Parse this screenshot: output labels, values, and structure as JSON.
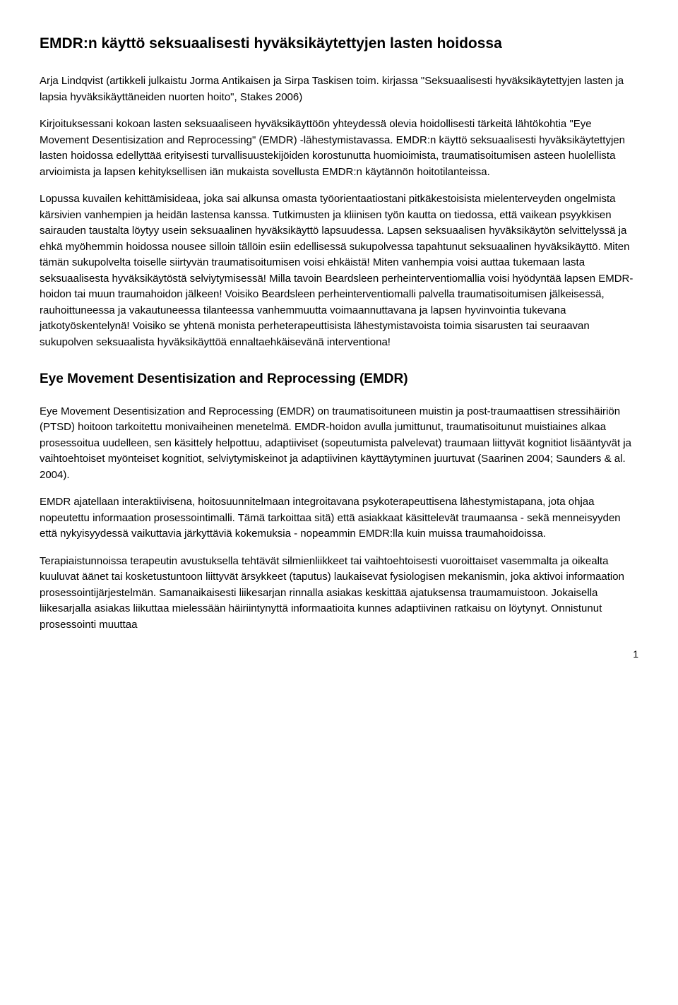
{
  "title": "EMDR:n käyttö seksuaalisesti hyväksikäytettyjen lasten hoidossa",
  "author_line": "Arja Lindqvist  (artikkeli julkaistu Jorma Antikaisen ja Sirpa Taskisen toim. kirjassa \"Seksuaalisesti hyväksikäytettyjen lasten ja lapsia hyväksikäyttäneiden nuorten hoito\", Stakes 2006)",
  "intro_p1": "Kirjoituksessani kokoan lasten seksuaaliseen hyväksikäyttöön yhteydessä olevia hoidollisesti tärkeitä lähtökohtia \"Eye Movement Desentisization and Reprocessing\" (EMDR) -lähestymistavassa. EMDR:n käyttö seksuaalisesti hyväksikäytettyjen lasten hoidossa edellyttää erityisesti turvallisuustekijöiden korostunutta huomioimista, traumatisoitumisen asteen huolellista arvioimista ja lapsen kehityksellisen iän mukaista sovellusta EMDR:n käytännön hoitotilanteissa.",
  "intro_p2": "Lopussa kuvailen kehittämisideaa, joka sai alkunsa omasta työorientaatiostani pitkäkestoisista mielenterveyden ongelmista kärsivien vanhempien ja heidän lastensa kanssa. Tutkimusten ja kliinisen työn kautta on tiedossa, että vaikean psyykkisen sairauden taustalta löytyy usein seksuaalinen hyväksikäyttö lapsuudessa. Lapsen seksuaalisen hyväksikäytön selvittelyssä ja ehkä myöhemmin hoidossa nousee silloin tällöin esiin edellisessä sukupolvessa tapahtunut seksuaalinen hyväksikäyttö. Miten tämän sukupolvelta toiselle siirtyvän traumatisoitumisen voisi ehkäistä! Miten vanhempia voisi auttaa tukemaan lasta seksuaalisesta hyväksikäytöstä selviytymisessä! Milla tavoin Beardsleen perheinterventiomallia voisi hyödyntää lapsen EMDR-hoidon tai muun traumahoidon jälkeen! Voisiko Beardsleen perheinterventiomalli palvella traumatisoitumisen jälkeisessä, rauhoittuneessa ja vakautuneessa tilanteessa vanhemmuutta voimaannuttavana ja lapsen hyvinvointia tukevana jatkotyöskentelynä! Voisiko se yhtenä monista perheterapeuttisista lähestymistavoista toimia sisarusten tai seuraavan sukupolven seksuaalista hyväksikäyttöä ennaltaehkäisevänä interventiona!",
  "section_heading": "Eye Movement Desentisization and Reprocessing (EMDR)",
  "sec_p1": "Eye Movement Desentisization and Reprocessing (EMDR) on traumatisoituneen muistin ja post-traumaattisen stressihäiriön (PTSD) hoitoon tarkoitettu monivaiheinen menetelmä. EMDR-hoidon avulla jumittunut, traumatisoitunut muistiaines alkaa prosessoitua uudelleen, sen käsittely helpottuu, adaptiiviset (sopeutumista palvelevat) traumaan liittyvät kognitiot lisääntyvät ja vaihtoehtoiset myönteiset kognitiot, selviytymiskeinot ja adaptiivinen käyttäytyminen juurtuvat (Saarinen 2004; Saunders & al. 2004).",
  "sec_p2": "EMDR ajatellaan interaktiivisena, hoitosuunnitelmaan integroitavana psykoterapeuttisena lähestymistapana, jota ohjaa nopeutettu informaation prosessointimalli. Tämä tarkoittaa sitä) että asiakkaat käsittelevät traumaansa - sekä menneisyyden että nykyisyydessä vaikuttavia järkyttäviä kokemuksia - nopeammin EMDR:lla kuin muissa traumahoidoissa.",
  "sec_p3": "Terapiaistunnoissa terapeutin avustuksella tehtävät silmienliikkeet tai vaihtoehtoisesti vuoroittaiset vasemmalta ja oikealta kuuluvat äänet tai kosketustuntoon liittyvät ärsykkeet (taputus) laukaisevat fysiologisen mekanismin, joka aktivoi informaation prosessointijärjestelmän. Samanaikaisesti liikesarjan rinnalla asiakas keskittää ajatuksensa traumamuistoon. Jokaisella liikesarjalla asiakas liikuttaa mielessään häiriintynyttä informaatioita kunnes adaptiivinen ratkaisu on löytynyt. Onnistunut prosessointi muuttaa",
  "page_number": "1"
}
